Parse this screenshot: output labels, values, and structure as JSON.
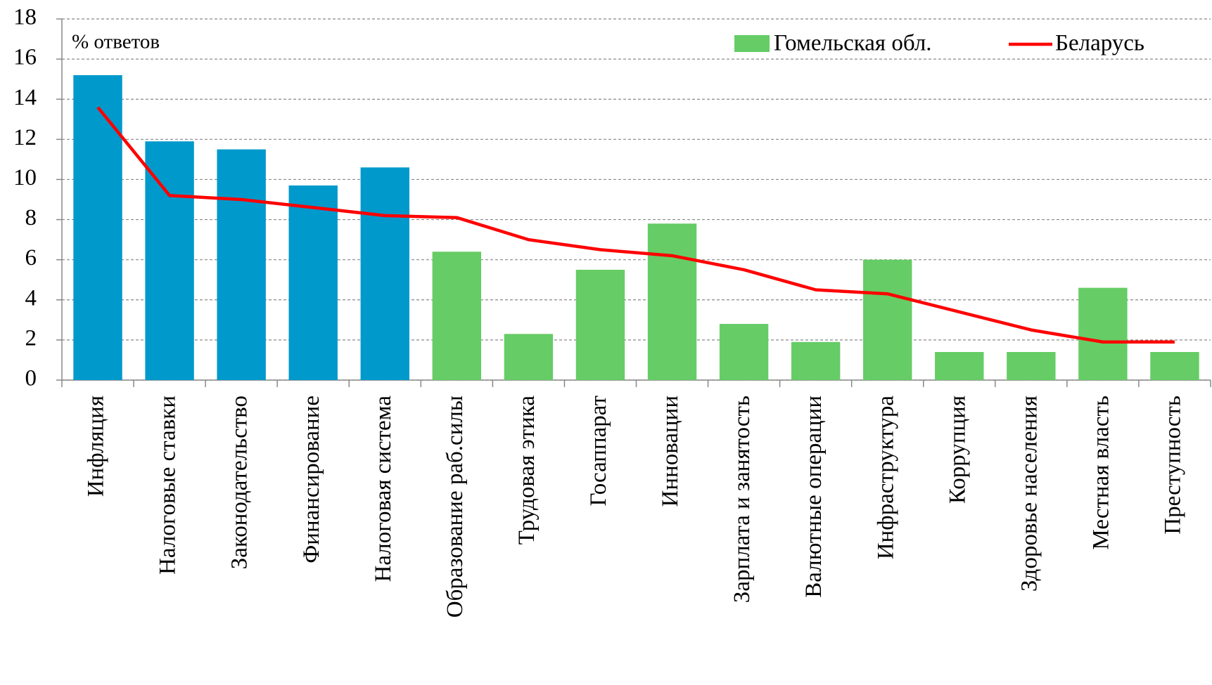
{
  "chart_data": {
    "type": "bar",
    "y_label": "% ответов",
    "categories": [
      "Инфляция",
      "Налоговые ставки",
      "Законодательство",
      "Финансирование",
      "Налоговая система",
      "Образование раб.силы",
      "Трудовая этика",
      "Госаппарат",
      "Инновации",
      "Зарплата и занятость",
      "Валютные операции",
      "Инфраструктура",
      "Коррупция",
      "Здоровье населения",
      "Местная власть",
      "Преступность"
    ],
    "series": [
      {
        "name": "Гомельская обл.",
        "type": "bar",
        "color": "#66cc66",
        "colors": [
          "#0099cc",
          "#0099cc",
          "#0099cc",
          "#0099cc",
          "#0099cc",
          "#66cc66",
          "#66cc66",
          "#66cc66",
          "#66cc66",
          "#66cc66",
          "#66cc66",
          "#66cc66",
          "#66cc66",
          "#66cc66",
          "#66cc66",
          "#66cc66"
        ],
        "values": [
          15.2,
          11.9,
          11.5,
          9.7,
          10.6,
          6.4,
          2.3,
          5.5,
          7.8,
          2.8,
          1.9,
          6.0,
          1.4,
          1.4,
          4.6,
          1.4
        ]
      },
      {
        "name": "Беларусь",
        "type": "line",
        "color": "#ff0000",
        "values": [
          13.6,
          9.2,
          9.0,
          8.6,
          8.2,
          8.1,
          7.0,
          6.5,
          6.2,
          5.5,
          4.5,
          4.3,
          3.4,
          2.5,
          1.9,
          1.9
        ]
      }
    ],
    "ylim": [
      0,
      18
    ],
    "yticks": [
      0,
      2,
      4,
      6,
      8,
      10,
      12,
      14,
      16,
      18
    ],
    "grid": true
  }
}
